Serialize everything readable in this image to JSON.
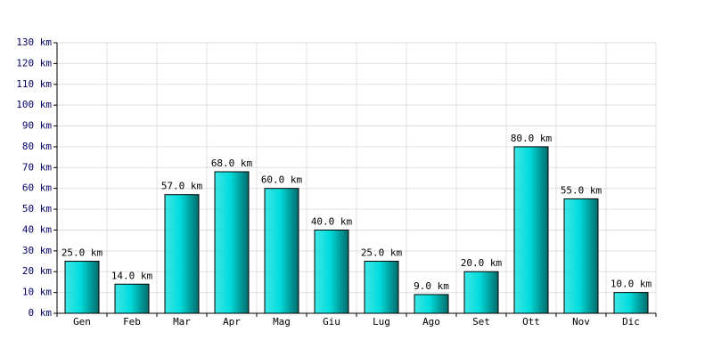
{
  "chart_data": {
    "type": "bar",
    "categories": [
      "Gen",
      "Feb",
      "Mar",
      "Apr",
      "Mag",
      "Giu",
      "Lug",
      "Ago",
      "Set",
      "Ott",
      "Nov",
      "Dic"
    ],
    "values": [
      25,
      14,
      57,
      68,
      60,
      40,
      25,
      9,
      20,
      80,
      55,
      10
    ],
    "value_labels": [
      "25.0 km",
      "14.0 km",
      "57.0 km",
      "68.0 km",
      "60.0 km",
      "40.0 km",
      "25.0 km",
      "9.0 km",
      "20.0 km",
      "80.0 km",
      "55.0 km",
      "10.0 km"
    ],
    "color": "#00dddd",
    "ylim": [
      0,
      130
    ],
    "yticks": [
      {
        "value": 0,
        "label": "0 km"
      },
      {
        "value": 10,
        "label": "10 km"
      },
      {
        "value": 20,
        "label": "20 km"
      },
      {
        "value": 30,
        "label": "30 km"
      },
      {
        "value": 40,
        "label": "40 km"
      },
      {
        "value": 50,
        "label": "50 km"
      },
      {
        "value": 60,
        "label": "60 km"
      },
      {
        "value": 70,
        "label": "70 km"
      },
      {
        "value": 80,
        "label": "80 km"
      },
      {
        "value": 90,
        "label": "90 km"
      },
      {
        "value": 100,
        "label": "100 km"
      },
      {
        "value": 110,
        "label": "110 km"
      },
      {
        "value": 120,
        "label": "120 km"
      },
      {
        "value": 130,
        "label": "130 km"
      }
    ],
    "grid": true
  }
}
